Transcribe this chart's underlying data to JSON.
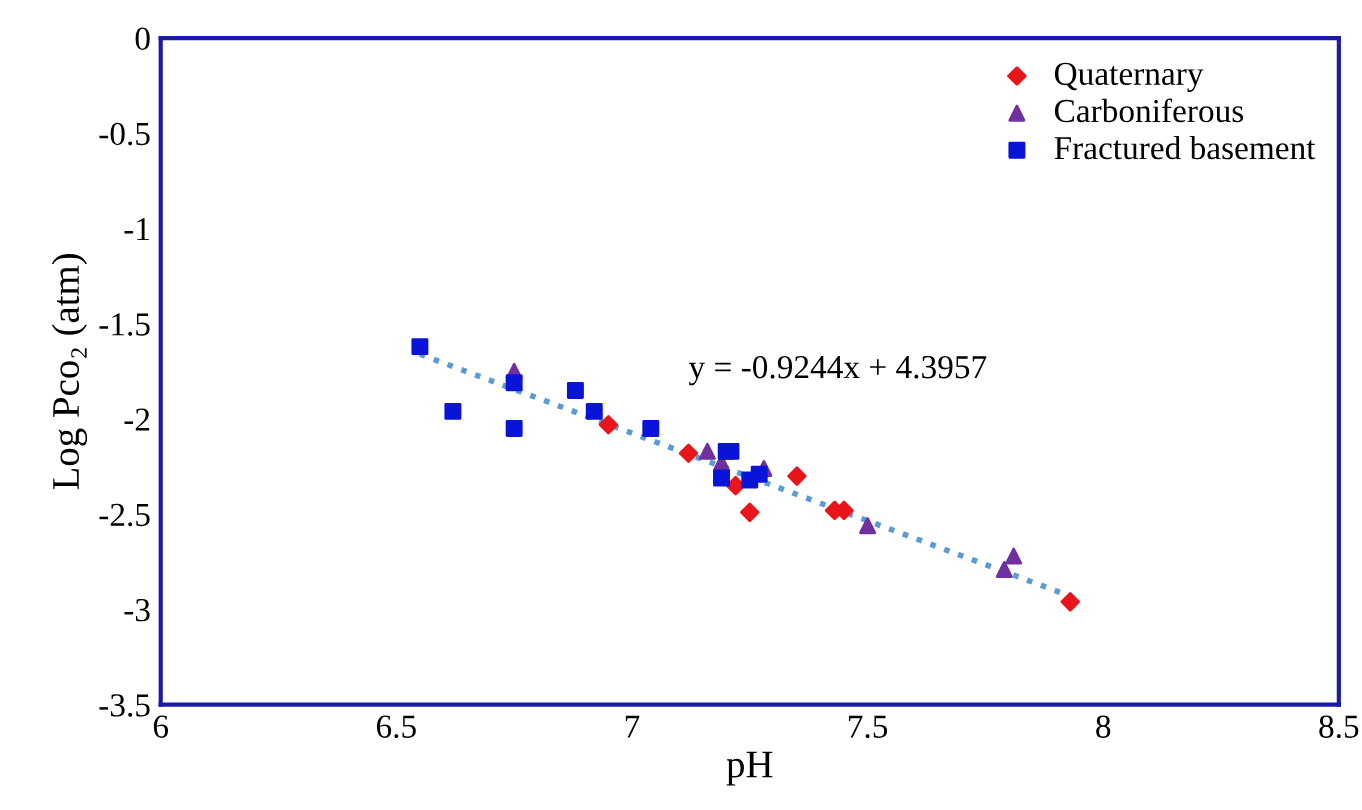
{
  "chart_data": {
    "type": "scatter",
    "xlabel": "pH",
    "ylabel": "Log Pco₂ (atm)",
    "xlim": [
      6,
      8.5
    ],
    "xticks": [
      6,
      6.5,
      7,
      7.5,
      8,
      8.5
    ],
    "ylim": [
      -3.5,
      0
    ],
    "yticks": [
      -3.5,
      -3,
      -2.5,
      -2,
      -1.5,
      -1,
      -0.5,
      0
    ],
    "grid": false,
    "legend": "top right",
    "annotations": [
      "y = -0.9244x + 4.3957"
    ],
    "series": [
      {
        "name": "Quaternary",
        "color": "#e8161b",
        "marker": "diamond",
        "x": [
          6.95,
          7.12,
          7.22,
          7.25,
          7.35,
          7.43,
          7.45,
          7.93
        ],
        "values": [
          -2.03,
          -2.18,
          -2.35,
          -2.49,
          -2.3,
          -2.48,
          -2.48,
          -2.96
        ]
      },
      {
        "name": "Carboniferous",
        "color": "#7030a0",
        "marker": "triangle",
        "x": [
          6.75,
          7.16,
          7.19,
          7.28,
          7.5,
          7.79,
          7.81
        ],
        "values": [
          -1.75,
          -2.17,
          -2.23,
          -2.26,
          -2.56,
          -2.79,
          -2.72
        ]
      },
      {
        "name": "Fractured basement",
        "color": "#0a14d8",
        "marker": "square",
        "x": [
          6.55,
          6.62,
          6.75,
          6.75,
          6.88,
          6.92,
          7.04,
          7.19,
          7.2,
          7.21,
          7.25,
          7.27
        ],
        "values": [
          -1.62,
          -1.96,
          -1.81,
          -2.05,
          -1.85,
          -1.96,
          -2.05,
          -2.31,
          -2.17,
          -2.17,
          -2.32,
          -2.29
        ]
      },
      {
        "type": "line",
        "color": "#5b9bd5",
        "line_style": "dotted",
        "marker": "none",
        "x": [
          6.55,
          7.93
        ],
        "values": [
          -1.66,
          -2.93
        ]
      }
    ]
  }
}
